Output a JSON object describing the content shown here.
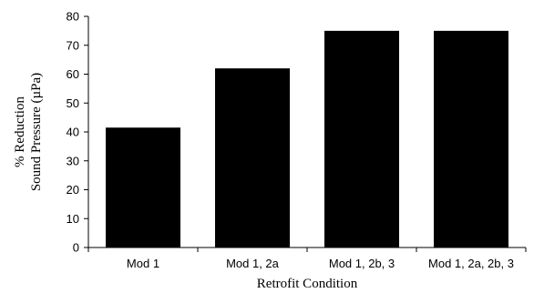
{
  "chart_data": {
    "type": "bar",
    "categories": [
      "Mod 1",
      "Mod 1, 2a",
      "Mod 1, 2b, 3",
      "Mod 1, 2a, 2b, 3"
    ],
    "values": [
      41.5,
      62,
      75,
      75
    ],
    "xlabel": "Retrofit Condition",
    "ylabel_line1": "% Reduction",
    "ylabel_line2": "Sound Pressure (µPa)",
    "ylim": [
      0,
      80
    ],
    "yticks": [
      0,
      10,
      20,
      30,
      40,
      50,
      60,
      70,
      80
    ],
    "bar_color": "#000000",
    "grid": false,
    "legend": "none"
  }
}
